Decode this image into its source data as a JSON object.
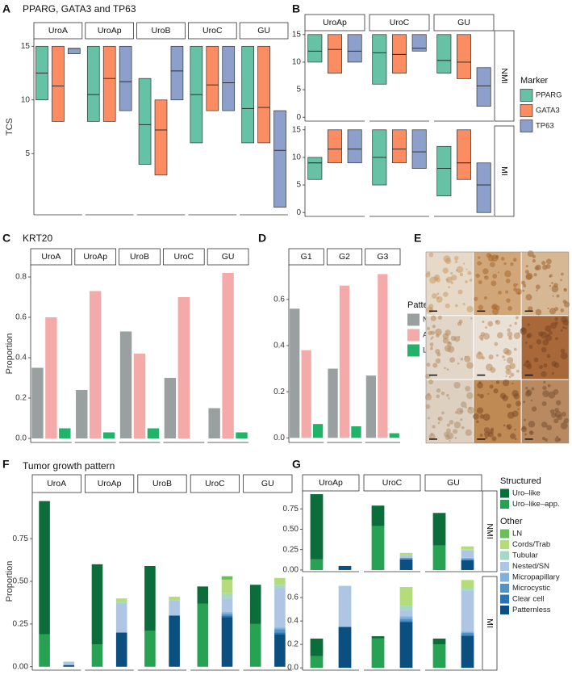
{
  "chart_data": [
    {
      "panel": "A",
      "type": "box",
      "title": "PPARG, GATA3 and TP63",
      "ylabel": "TCS",
      "colors": [
        "#66c2a5",
        "#fc8d62",
        "#8da0cb"
      ],
      "facets": [
        "UroA",
        "UroAp",
        "UroB",
        "UroC",
        "GU"
      ],
      "rows": [
        {
          "ylim": [
            -0.7,
            15.7
          ],
          "yticks": [
            5,
            10,
            15
          ],
          "data": [
            [
              {
                "low": 10,
                "median": 12.5,
                "high": 15
              },
              {
                "low": 8,
                "median": 11.3,
                "high": 15
              },
              {
                "low": 14.3,
                "median": 14.8,
                "high": 14.8
              }
            ],
            [
              {
                "low": 8,
                "median": 10.5,
                "high": 15
              },
              {
                "low": 8,
                "median": 12,
                "high": 15
              },
              {
                "low": 9,
                "median": 11.7,
                "high": 15
              }
            ],
            [
              {
                "low": 4,
                "median": 7.7,
                "high": 12
              },
              {
                "low": 3,
                "median": 7.2,
                "high": 10
              },
              {
                "low": 10,
                "median": 12.7,
                "high": 15
              }
            ],
            [
              {
                "low": 6,
                "median": 10.5,
                "high": 15
              },
              {
                "low": 9,
                "median": 11.4,
                "high": 15
              },
              {
                "low": 9,
                "median": 11.6,
                "high": 15
              }
            ],
            [
              {
                "low": 6,
                "median": 9.2,
                "high": 15
              },
              {
                "low": 6,
                "median": 9.3,
                "high": 15
              },
              {
                "low": 0,
                "median": 5.3,
                "high": 9
              }
            ]
          ]
        }
      ]
    },
    {
      "panel": "B",
      "type": "box",
      "legend_title": "Marker",
      "series": [
        {
          "name": "PPARG",
          "color": "#66c2a5"
        },
        {
          "name": "GATA3",
          "color": "#fc8d62"
        },
        {
          "name": "TP63",
          "color": "#8da0cb"
        }
      ],
      "facets": [
        "UroAp",
        "UroC",
        "GU"
      ],
      "rows": [
        {
          "name": "NMI",
          "ylim": [
            -0.7,
            15.7
          ],
          "yticks": [
            0,
            5,
            10,
            15
          ],
          "data": [
            [
              {
                "low": 10,
                "median": 12,
                "high": 15
              },
              {
                "low": 8,
                "median": 12.3,
                "high": 15
              },
              {
                "low": 10,
                "median": 12,
                "high": 15
              }
            ],
            [
              {
                "low": 6,
                "median": 11.7,
                "high": 15
              },
              {
                "low": 8,
                "median": 11.4,
                "high": 15
              },
              {
                "low": 12,
                "median": 12.5,
                "high": 15
              }
            ],
            [
              {
                "low": 8,
                "median": 10.3,
                "high": 15
              },
              {
                "low": 7,
                "median": 10,
                "high": 15
              },
              {
                "low": 2,
                "median": 5.7,
                "high": 9
              }
            ]
          ]
        },
        {
          "name": "MI",
          "ylim": [
            -0.7,
            15.7
          ],
          "yticks": [
            0,
            5,
            10,
            15
          ],
          "data": [
            [
              {
                "low": 6,
                "median": 9,
                "high": 10
              },
              {
                "low": 9,
                "median": 11.5,
                "high": 15
              },
              {
                "low": 9,
                "median": 11.5,
                "high": 15
              }
            ],
            [
              {
                "low": 5,
                "median": 10,
                "high": 15
              },
              {
                "low": 9,
                "median": 11.5,
                "high": 15
              },
              {
                "low": 8,
                "median": 11,
                "high": 15
              }
            ],
            [
              {
                "low": 3,
                "median": 8,
                "high": 12
              },
              {
                "low": 6,
                "median": 9,
                "high": 15
              },
              {
                "low": 0,
                "median": 5,
                "high": 9
              }
            ]
          ]
        }
      ]
    },
    {
      "panel": "C",
      "type": "bar",
      "title": "KRT20",
      "ylabel": "Proportion",
      "colors": [
        "#9aa0a0",
        "#f4aaa8",
        "#22b36a"
      ],
      "facets": [
        "UroA",
        "UroAp",
        "UroB",
        "UroC",
        "GU"
      ],
      "rows": [
        {
          "ylim": [
            -0.02,
            0.86
          ],
          "yticks": [
            {
              "value": 0,
              "label": "0.0"
            },
            0.2,
            0.4,
            0.6,
            0.8
          ],
          "data": [
            [
              0.35,
              0.6,
              0.05
            ],
            [
              0.24,
              0.73,
              0.03
            ],
            [
              0.53,
              0.42,
              0.05
            ],
            [
              0.3,
              0.7,
              0
            ],
            [
              0.15,
              0.82,
              0.03
            ]
          ]
        }
      ]
    },
    {
      "panel": "D",
      "type": "bar",
      "legend_title": "Pattern",
      "series": [
        {
          "name": "Negative",
          "color": "#9aa0a0"
        },
        {
          "name": "Abnormal",
          "color": "#f4aaa8"
        },
        {
          "name": "Luminal",
          "color": "#22b36a"
        }
      ],
      "facets": [
        "G1",
        "G2",
        "G3"
      ],
      "rows": [
        {
          "ylim": [
            -0.02,
            0.75
          ],
          "yticks": [
            {
              "value": 0,
              "label": "0.0"
            },
            0.2,
            0.4,
            0.6
          ],
          "data": [
            [
              0.56,
              0.38,
              0.06
            ],
            [
              0.3,
              0.66,
              0.05
            ],
            [
              0.27,
              0.71,
              0.02
            ]
          ]
        }
      ]
    },
    {
      "panel": "F",
      "type": "stacked",
      "title": "Tumor growth pattern",
      "ylabel": "Proportion",
      "colors": [
        [
          "#0b6e3a",
          "#27a152"
        ],
        [
          "#6bbf59",
          "#b5dc7a",
          "#a5d8c5",
          "#aec6e4",
          "#80b1da",
          "#4f93c7",
          "#2a72b0",
          "#0b4f80"
        ]
      ],
      "facets": [
        "UroA",
        "UroAp",
        "UroB",
        "UroC",
        "GU"
      ],
      "rows": [
        {
          "ylim": [
            -0.02,
            1.02
          ],
          "yticks": [
            {
              "value": 0,
              "label": "0.00"
            },
            0.25,
            {
              "value": 0.5,
              "label": "0.50"
            },
            0.75
          ],
          "data": [
            [
              [
                0.78,
                0.19
              ],
              [
                0,
                0,
                0,
                0.02,
                0,
                0,
                0,
                0.01
              ]
            ],
            [
              [
                0.47,
                0.13
              ],
              [
                0,
                0.02,
                0.01,
                0.17,
                0,
                0,
                0,
                0.2
              ]
            ],
            [
              [
                0.38,
                0.21
              ],
              [
                0,
                0.02,
                0,
                0.09,
                0,
                0,
                0,
                0.3
              ]
            ],
            [
              [
                0.1,
                0.37
              ],
              [
                0.02,
                0.08,
                0.03,
                0.08,
                0.01,
                0.01,
                0.01,
                0.29
              ]
            ],
            [
              [
                0.23,
                0.25
              ],
              [
                0,
                0.04,
                0.02,
                0.23,
                0.01,
                0.02,
                0.01,
                0.19
              ]
            ]
          ]
        }
      ]
    },
    {
      "panel": "G",
      "type": "stacked",
      "legend_groups": [
        {
          "name": "Structured",
          "series": [
            {
              "name": "Uro–like",
              "color": "#0b6e3a"
            },
            {
              "name": "Uro–like–app.",
              "color": "#27a152"
            }
          ]
        },
        {
          "name": "Other",
          "series": [
            {
              "name": "LN",
              "color": "#6bbf59"
            },
            {
              "name": "Cords/Trab",
              "color": "#b5dc7a"
            },
            {
              "name": "Tubular",
              "color": "#a5d8c5"
            },
            {
              "name": "Nested/SN",
              "color": "#aec6e4"
            },
            {
              "name": "Micropapillary",
              "color": "#80b1da"
            },
            {
              "name": "Microcystic",
              "color": "#4f93c7"
            },
            {
              "name": "Clear cell",
              "color": "#2a72b0"
            },
            {
              "name": "Patternless",
              "color": "#0b4f80"
            }
          ]
        }
      ],
      "facets": [
        "UroAp",
        "UroC",
        "GU"
      ],
      "rows": [
        {
          "name": "NMI",
          "ylim": [
            -0.02,
            0.97
          ],
          "yticks": [
            {
              "value": 0,
              "label": "0.00"
            },
            0.25,
            {
              "value": 0.5,
              "label": "0.50"
            },
            0.75
          ],
          "data": [
            [
              [
                0.8,
                0.13
              ],
              [
                0,
                0,
                0,
                0,
                0,
                0,
                0,
                0.05
              ]
            ],
            [
              [
                0.25,
                0.54
              ],
              [
                0,
                0.03,
                0,
                0.03,
                0,
                0.02,
                0,
                0.13
              ]
            ],
            [
              [
                0.4,
                0.3
              ],
              [
                0,
                0.04,
                0.01,
                0.09,
                0.01,
                0.02,
                0,
                0.12
              ]
            ]
          ]
        },
        {
          "name": "MI",
          "ylim": [
            -0.02,
            0.78
          ],
          "yticks": [
            {
              "value": 0,
              "label": "0.0"
            },
            0.2,
            0.4,
            0.6
          ],
          "data": [
            [
              [
                0.15,
                0.1
              ],
              [
                0,
                0,
                0,
                0.35,
                0,
                0,
                0,
                0.35
              ]
            ],
            [
              [
                0.02,
                0.25
              ],
              [
                0,
                0.16,
                0.04,
                0.05,
                0.02,
                0.02,
                0.01,
                0.39
              ]
            ],
            [
              [
                0.05,
                0.2
              ],
              [
                0,
                0.07,
                0.02,
                0.35,
                0.01,
                0.02,
                0.01,
                0.27
              ]
            ]
          ]
        }
      ]
    }
  ],
  "image_panel": {
    "panel": "E"
  }
}
